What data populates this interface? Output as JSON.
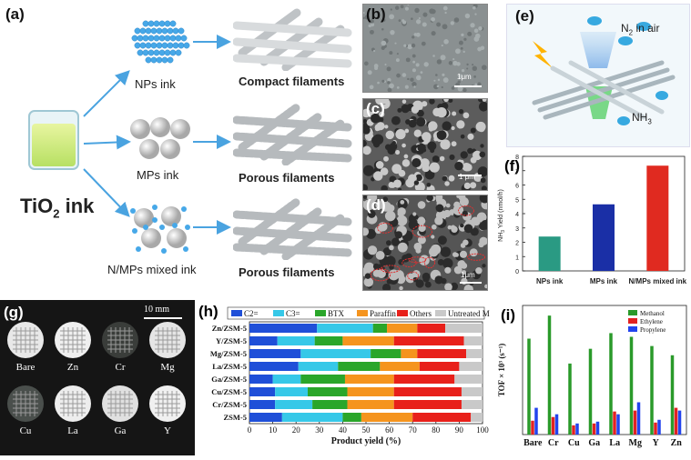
{
  "panel_a": {
    "label": "(a)",
    "ink": "TiO2 ink",
    "ink_main": "TiO",
    "ink_sub": "2",
    "ink_rest": " ink",
    "branches": [
      {
        "ink_label": "NPs ink",
        "filament_label": "Compact filaments"
      },
      {
        "ink_label": "MPs ink",
        "filament_label": "Porous filaments"
      },
      {
        "ink_label": "N/MPs mixed ink",
        "filament_label": "Porous filaments"
      }
    ]
  },
  "panel_b": {
    "label": "(b)",
    "scale": "1μm"
  },
  "panel_c": {
    "label": "(c)",
    "scale": "1 μm"
  },
  "panel_d": {
    "label": "(d)",
    "scale": "1μm"
  },
  "panel_e": {
    "label": "(e)",
    "n2_main": "N",
    "n2_sub": "2",
    "n2_rest": " in air",
    "nh3_main": "NH",
    "nh3_sub": "3"
  },
  "panel_g": {
    "label": "(g)",
    "scale": "10 mm",
    "samples": [
      "Bare",
      "Zn",
      "Cr",
      "Mg",
      "Cu",
      "La",
      "Ga",
      "Y"
    ]
  },
  "colors": {
    "teal": "#2a9a83",
    "navy": "#1a2fa6",
    "red": "#e02a20",
    "c2": "#1f4fd8",
    "c3": "#36c8e8",
    "btx": "#2aa62a",
    "paraffin": "#f5941e",
    "others": "#e8201a",
    "untreated": "#c9c9c9",
    "methanol": "#2a9a2a",
    "ethylene": "#e22222",
    "propylene": "#2244ee"
  },
  "chart_data": [
    {
      "panel": "(f)",
      "type": "bar",
      "ylabel": "NH3 Yield (nmol/h)",
      "ylabel_main": "NH",
      "ylabel_sub": "3",
      "ylabel_rest": " Yield (nmol/h)",
      "categories": [
        "NPs ink",
        "MPs ink",
        "N/MPs mixed ink"
      ],
      "values": [
        2.4,
        4.65,
        7.35
      ],
      "ylim": [
        0,
        8
      ],
      "yticks": [
        "0",
        "1",
        "2",
        "3",
        "4",
        "5",
        "6",
        "7",
        "8"
      ]
    },
    {
      "panel": "(h)",
      "type": "bar",
      "orientation": "horizontal-stacked",
      "xlabel": "Product yield (%)",
      "xlim": [
        0,
        100
      ],
      "xticks": [
        "0",
        "10",
        "20",
        "30",
        "40",
        "50",
        "60",
        "70",
        "80",
        "90",
        "100"
      ],
      "categories": [
        "Zn/ZSM-5",
        "Y/ZSM-5",
        "Mg/ZSM-5",
        "La/ZSM-5",
        "Ga/ZSM-5",
        "Cu/ZSM-5",
        "Cr/ZSM-5",
        "ZSM-5"
      ],
      "series": [
        {
          "name": "C2=",
          "values": [
            29,
            12,
            22,
            21,
            10,
            11,
            11,
            14
          ]
        },
        {
          "name": "C3=",
          "values": [
            24,
            16,
            30,
            17,
            12,
            14,
            16,
            26
          ]
        },
        {
          "name": "BTX",
          "values": [
            6,
            12,
            13,
            18,
            19,
            17,
            15,
            8
          ]
        },
        {
          "name": "Paraffin",
          "values": [
            13,
            22,
            7,
            17,
            21,
            20,
            20,
            22
          ]
        },
        {
          "name": "Others",
          "values": [
            12,
            30,
            21,
            17,
            26,
            29,
            29,
            25
          ]
        },
        {
          "name": "Untreated MeOH",
          "values": [
            16,
            8,
            7,
            10,
            12,
            9,
            9,
            5
          ]
        }
      ]
    },
    {
      "panel": "(i)",
      "type": "bar",
      "ylabel": "TOF × 10³ (s⁻¹)",
      "categories": [
        "Bare",
        "Cr",
        "Cu",
        "Ga",
        "La",
        "Mg",
        "Y",
        "Zn"
      ],
      "series": [
        {
          "name": "Methanol",
          "values": [
            5.2,
            6.45,
            3.85,
            4.65,
            5.5,
            5.3,
            4.8,
            4.3
          ]
        },
        {
          "name": "Ethylene",
          "values": [
            0.75,
            0.95,
            0.5,
            0.6,
            1.25,
            1.3,
            0.65,
            1.45
          ]
        },
        {
          "name": "Propylene",
          "values": [
            1.45,
            1.1,
            0.6,
            0.7,
            1.1,
            1.75,
            0.8,
            1.3
          ]
        }
      ],
      "ylim": [
        0,
        7
      ]
    }
  ]
}
